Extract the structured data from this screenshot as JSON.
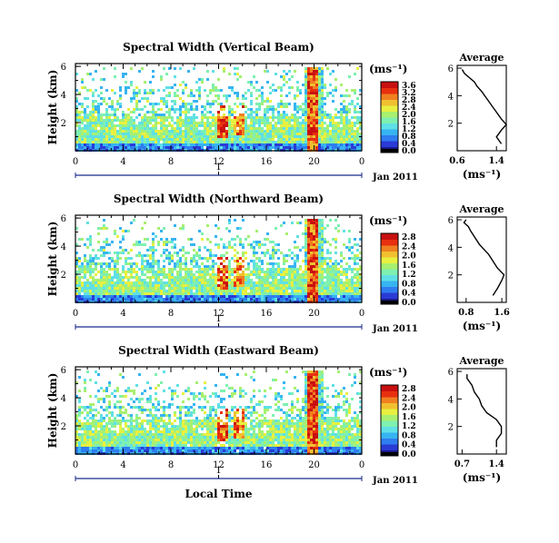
{
  "chart_data": [
    {
      "type": "heatmap",
      "title": "Spectral Width (Vertical Beam)",
      "ylabel": "Height (km)",
      "yticks": [
        "6",
        "4",
        "2"
      ],
      "xticks": [
        "0",
        "4",
        "8",
        "12",
        "16",
        "20",
        "0"
      ],
      "xlim": [
        0,
        24
      ],
      "ylim": [
        0,
        6.2
      ],
      "date_marker": "1",
      "date_label": "Jan 2011",
      "colorbar": {
        "unit": "(ms⁻¹)",
        "ticks": [
          "3.6",
          "3.2",
          "2.8",
          "2.4",
          "2.0",
          "1.6",
          "1.2",
          "0.8",
          "0.4",
          "0.0"
        ],
        "range": [
          0,
          3.6
        ]
      },
      "average": {
        "title": "Average",
        "xticks": [
          "0.6",
          "1.4"
        ],
        "xlim": [
          0.6,
          1.6
        ],
        "xlabel": "(ms⁻¹)",
        "yticks": [
          "6",
          "4",
          "2"
        ],
        "profile": [
          [
            1.5,
            0.5
          ],
          [
            1.4,
            1.0
          ],
          [
            1.5,
            1.5
          ],
          [
            1.6,
            1.9
          ],
          [
            1.5,
            2.3
          ],
          [
            1.4,
            2.8
          ],
          [
            1.3,
            3.3
          ],
          [
            1.2,
            3.8
          ],
          [
            1.1,
            4.3
          ],
          [
            1.0,
            4.7
          ],
          [
            0.95,
            5.0
          ],
          [
            0.85,
            5.3
          ],
          [
            0.75,
            5.6
          ],
          [
            0.7,
            5.9
          ]
        ]
      }
    },
    {
      "type": "heatmap",
      "title": "Spectral Width (Northward Beam)",
      "ylabel": "Height (km)",
      "yticks": [
        "6",
        "4",
        "2"
      ],
      "xticks": [
        "0",
        "4",
        "8",
        "12",
        "16",
        "20",
        "0"
      ],
      "xlim": [
        0,
        24
      ],
      "ylim": [
        0,
        6.2
      ],
      "date_marker": "1",
      "date_label": "Jan 2011",
      "colorbar": {
        "unit": "(ms⁻¹)",
        "ticks": [
          "2.8",
          "2.4",
          "2.0",
          "1.6",
          "1.2",
          "0.8",
          "0.4",
          "0.0"
        ],
        "range": [
          0,
          2.8
        ]
      },
      "average": {
        "title": "Average",
        "xticks": [
          "0.8",
          "1.6"
        ],
        "xlim": [
          0.6,
          1.7
        ],
        "xlabel": "(ms⁻¹)",
        "yticks": [
          "6",
          "4",
          "2"
        ],
        "profile": [
          [
            1.4,
            0.5
          ],
          [
            1.5,
            1.0
          ],
          [
            1.6,
            1.6
          ],
          [
            1.65,
            2.0
          ],
          [
            1.5,
            2.5
          ],
          [
            1.4,
            3.0
          ],
          [
            1.3,
            3.5
          ],
          [
            1.1,
            4.2
          ],
          [
            1.0,
            4.7
          ],
          [
            0.9,
            5.2
          ],
          [
            0.85,
            5.5
          ],
          [
            0.75,
            5.8
          ],
          [
            0.8,
            6.0
          ]
        ]
      }
    },
    {
      "type": "heatmap",
      "title": "Spectral Width (Eastward Beam)",
      "ylabel": "Height (km)",
      "yticks": [
        "6",
        "4",
        "2"
      ],
      "xticks": [
        "0",
        "4",
        "8",
        "12",
        "16",
        "20",
        "0"
      ],
      "xlim": [
        0,
        24
      ],
      "ylim": [
        0,
        6.2
      ],
      "date_marker": "1",
      "date_label": "Jan 2011",
      "xlabel": "Local Time",
      "colorbar": {
        "unit": "(ms⁻¹)",
        "ticks": [
          "2.8",
          "2.4",
          "2.0",
          "1.6",
          "1.2",
          "0.8",
          "0.4",
          "0.0"
        ],
        "range": [
          0,
          2.8
        ]
      },
      "average": {
        "title": "Average",
        "xticks": [
          "0.7",
          "1.4"
        ],
        "xlim": [
          0.6,
          1.6
        ],
        "xlabel": "(ms⁻¹)",
        "yticks": [
          "6",
          "4",
          "2"
        ],
        "profile": [
          [
            1.4,
            0.5
          ],
          [
            1.4,
            1.0
          ],
          [
            1.5,
            1.5
          ],
          [
            1.5,
            2.0
          ],
          [
            1.4,
            2.5
          ],
          [
            1.2,
            3.0
          ],
          [
            1.1,
            3.5
          ],
          [
            1.05,
            4.0
          ],
          [
            0.95,
            4.5
          ],
          [
            0.9,
            5.0
          ],
          [
            0.8,
            5.5
          ],
          [
            0.8,
            5.8
          ]
        ]
      }
    }
  ]
}
